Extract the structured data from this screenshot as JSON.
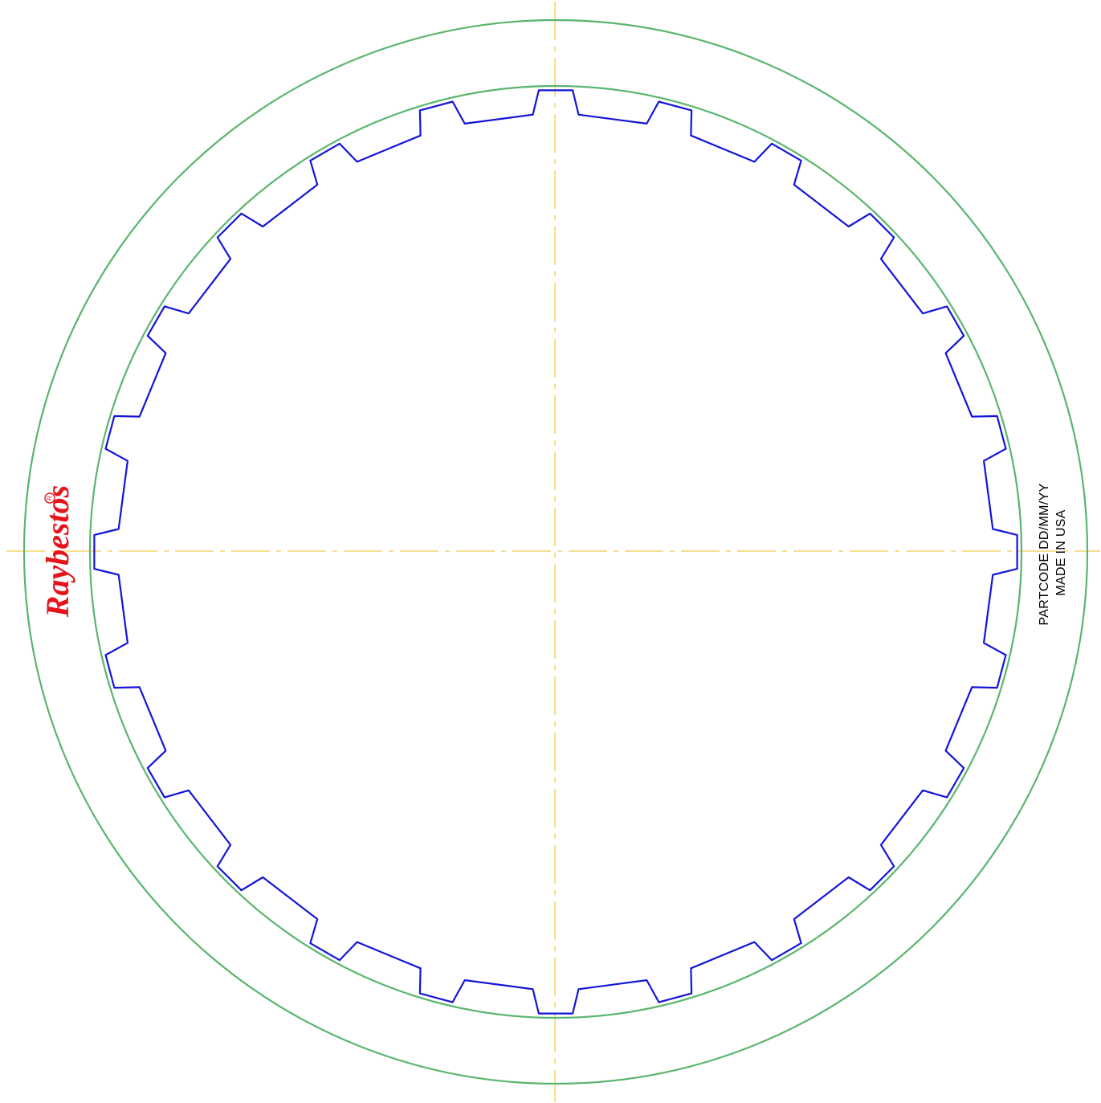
{
  "colors": {
    "outer_ring": "#5ab56e",
    "inner_ring": "#5ab56e",
    "spline": "#1414d8",
    "centerline": "#f0cc50",
    "logo": "#e5141b",
    "text": "#000000"
  },
  "logo": {
    "text": "Raybestos",
    "registered": "R",
    "icon": "raybestos-logo-icon"
  },
  "marking": {
    "line1": "PARTCODE DD/MM/YY",
    "line2": "MADE IN USA"
  },
  "spline": {
    "tooth_count": 24
  }
}
